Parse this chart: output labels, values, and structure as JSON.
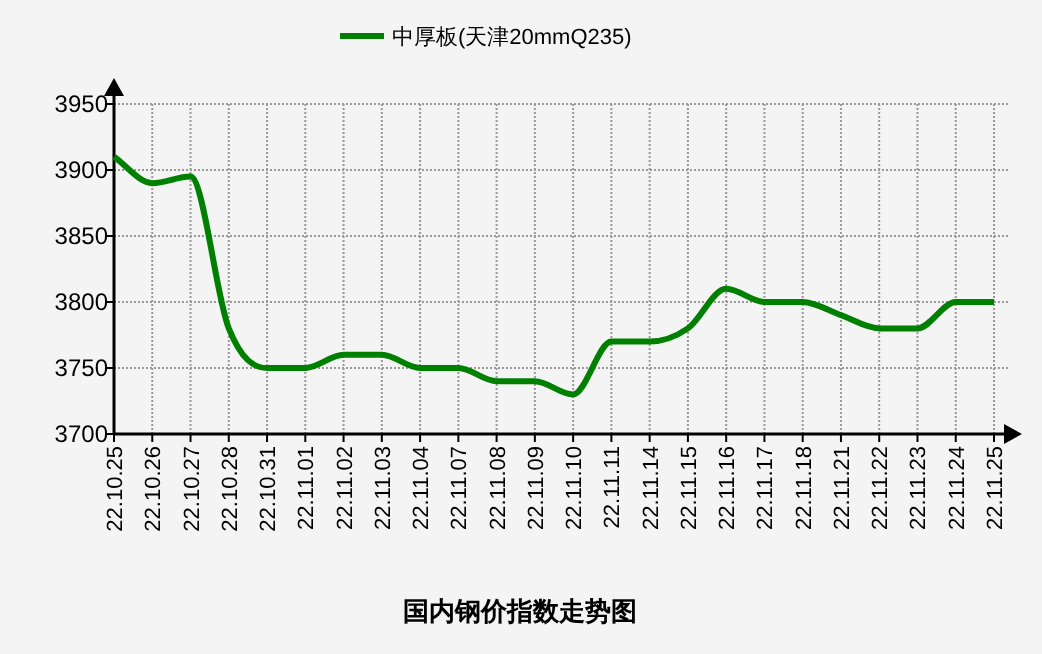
{
  "chart_data": {
    "type": "line",
    "title": "国内钢价指数走势图",
    "categories": [
      "22.10.25",
      "22.10.26",
      "22.10.27",
      "22.10.28",
      "22.10.31",
      "22.11.01",
      "22.11.02",
      "22.11.03",
      "22.11.04",
      "22.11.07",
      "22.11.08",
      "22.11.09",
      "22.11.10",
      "22.11.11",
      "22.11.14",
      "22.11.15",
      "22.11.16",
      "22.11.17",
      "22.11.18",
      "22.11.21",
      "22.11.22",
      "22.11.23",
      "22.11.24",
      "22.11.25"
    ],
    "series": [
      {
        "name": "中厚板(天津20mmQ235)",
        "color": "#008000",
        "values": [
          3910,
          3890,
          3895,
          3780,
          3750,
          3750,
          3760,
          3760,
          3750,
          3750,
          3740,
          3740,
          3730,
          3770,
          3770,
          3780,
          3810,
          3800,
          3800,
          3790,
          3780,
          3780,
          3800,
          3800
        ]
      }
    ],
    "ylim": [
      3700,
      3950
    ],
    "yticks": [
      3700,
      3750,
      3800,
      3850,
      3900,
      3950
    ],
    "grid": true,
    "legend": "top",
    "marker": "none",
    "line_style": "solid"
  }
}
